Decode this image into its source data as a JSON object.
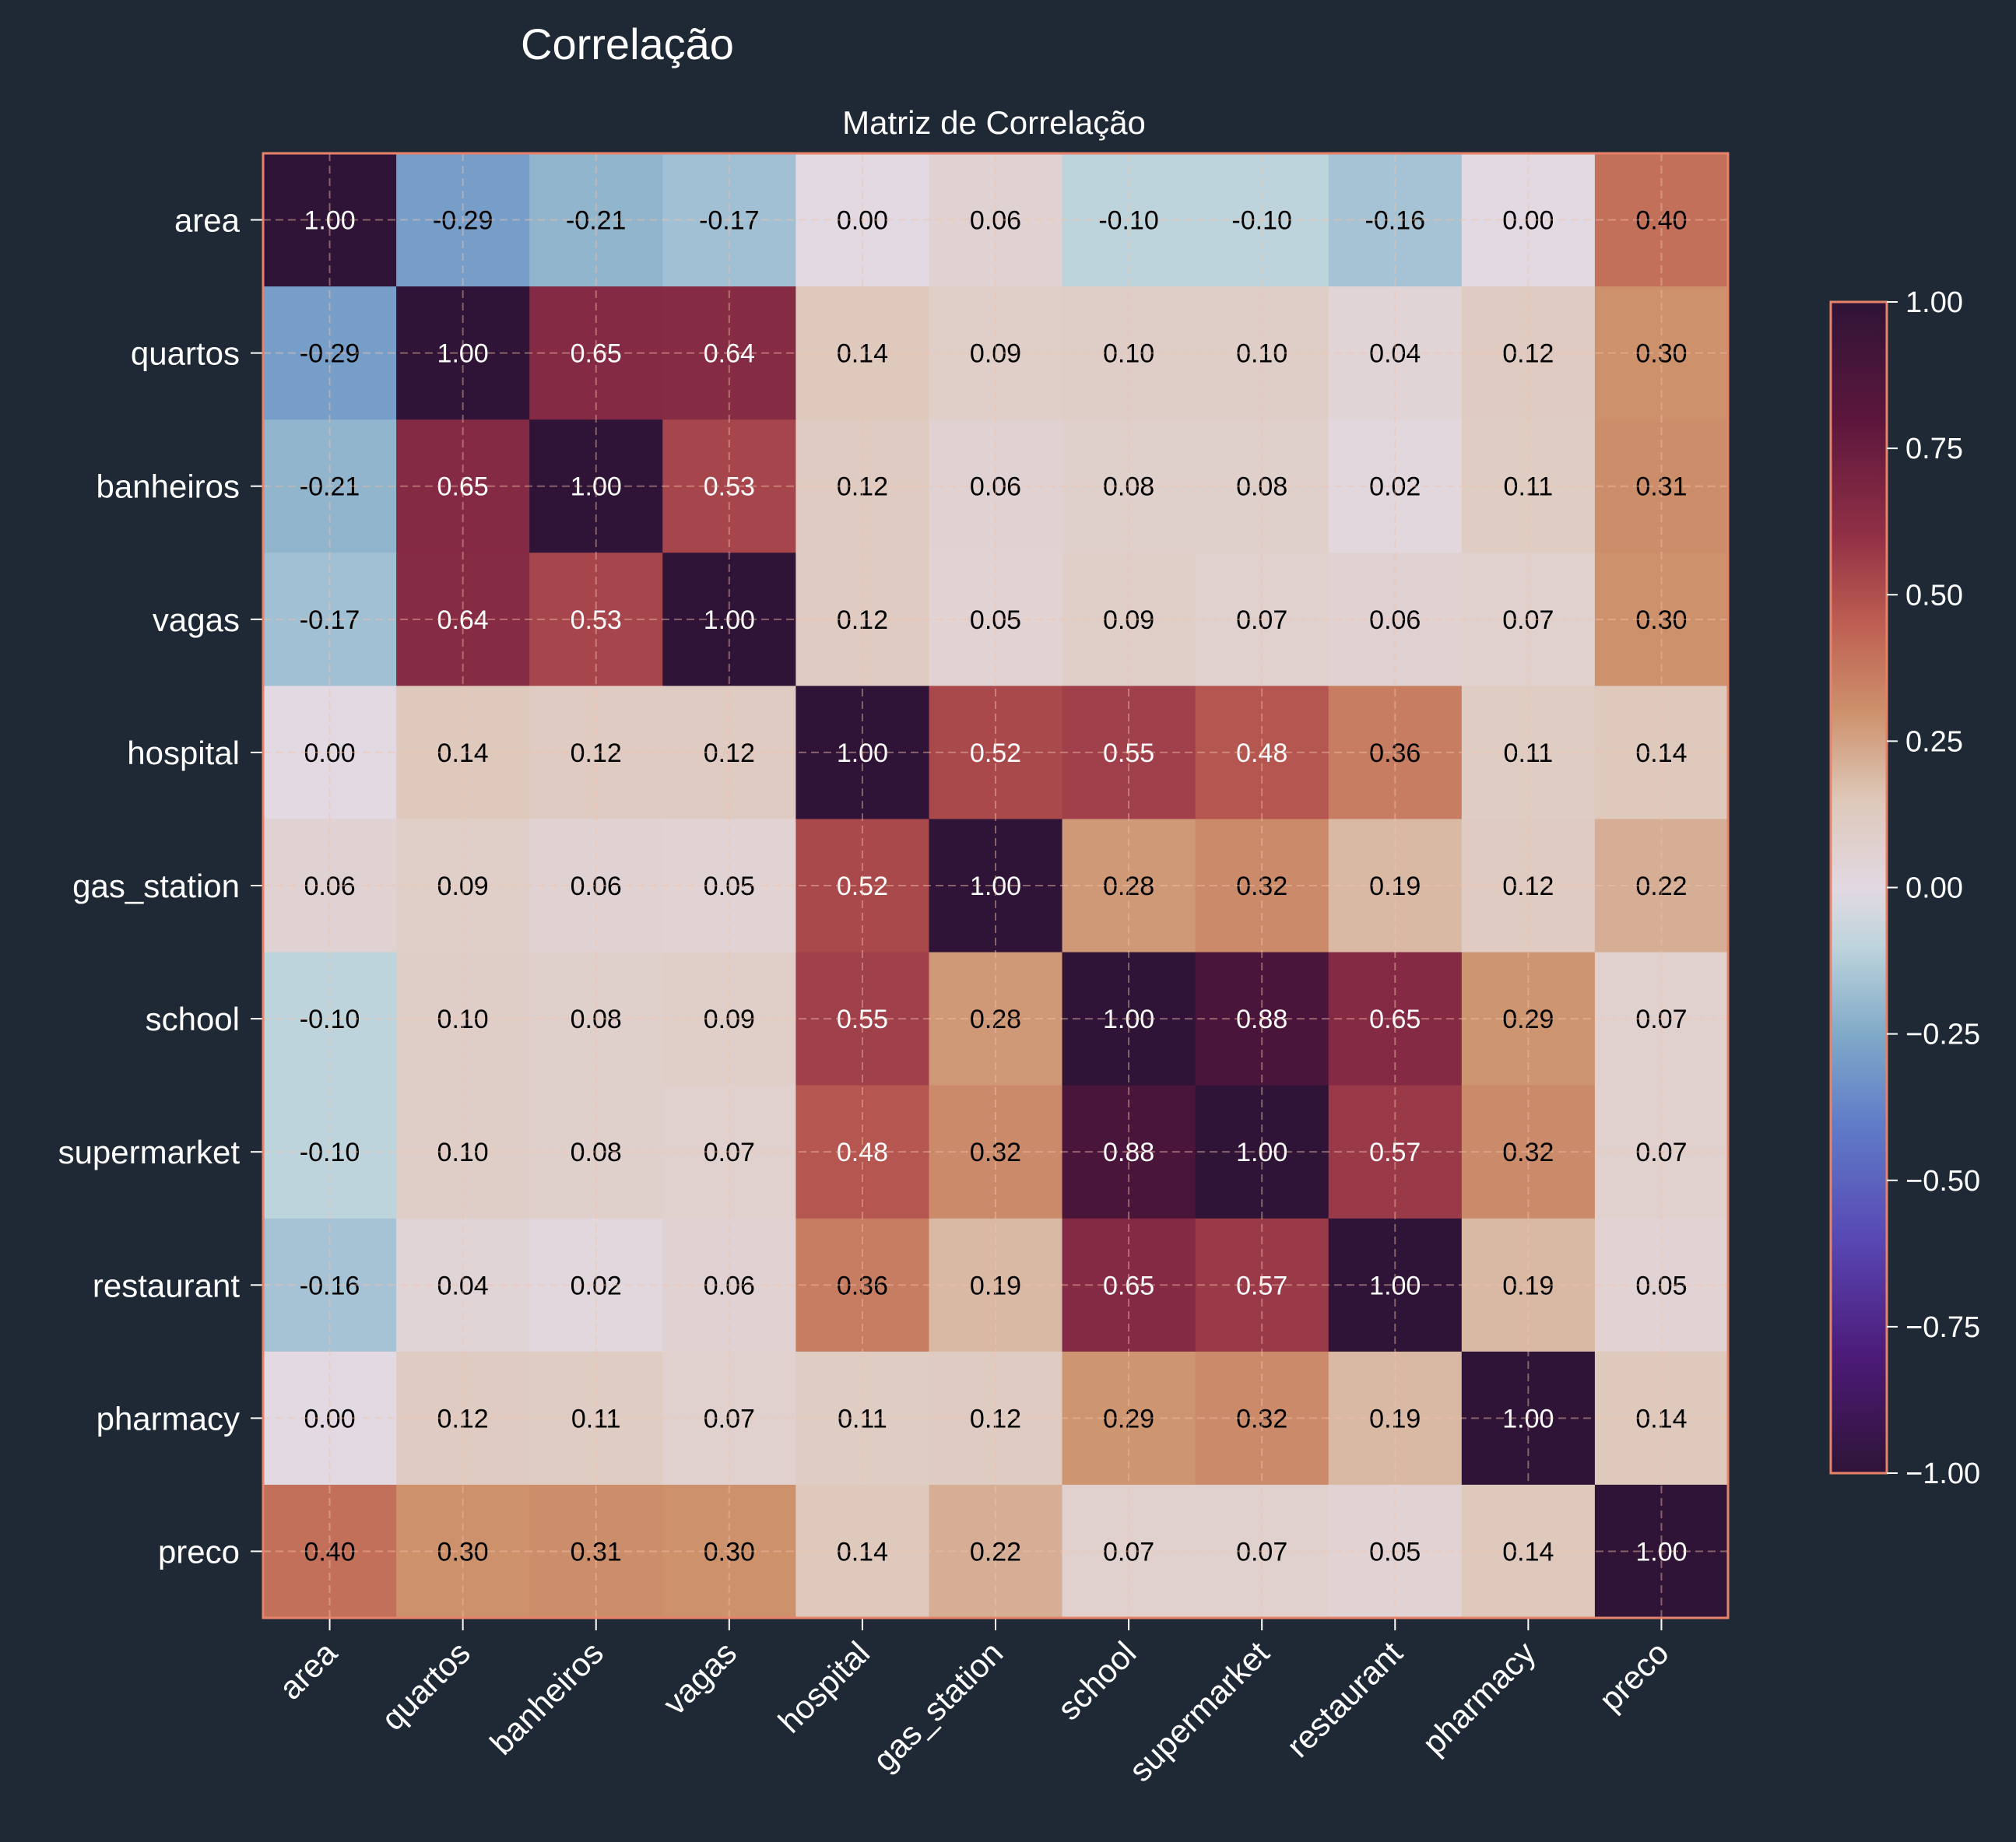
{
  "suptitle": "Correlação",
  "chart_data": {
    "type": "heatmap",
    "title": "Matriz de Correlação",
    "xlabel": "",
    "ylabel": "",
    "labels": [
      "area",
      "quartos",
      "banheiros",
      "vagas",
      "hospital",
      "gas_station",
      "school",
      "supermarket",
      "restaurant",
      "pharmacy",
      "preco"
    ],
    "values": [
      [
        1.0,
        -0.29,
        -0.21,
        -0.17,
        -0.0,
        0.06,
        -0.1,
        -0.1,
        -0.16,
        -0.0,
        0.4
      ],
      [
        -0.29,
        1.0,
        0.65,
        0.64,
        0.14,
        0.09,
        0.1,
        0.1,
        0.04,
        0.12,
        0.3
      ],
      [
        -0.21,
        0.65,
        1.0,
        0.53,
        0.12,
        0.06,
        0.08,
        0.08,
        0.02,
        0.11,
        0.31
      ],
      [
        -0.17,
        0.64,
        0.53,
        1.0,
        0.12,
        0.05,
        0.09,
        0.07,
        0.06,
        0.07,
        0.3
      ],
      [
        -0.0,
        0.14,
        0.12,
        0.12,
        1.0,
        0.52,
        0.55,
        0.48,
        0.36,
        0.11,
        0.14
      ],
      [
        0.06,
        0.09,
        0.06,
        0.05,
        0.52,
        1.0,
        0.28,
        0.32,
        0.19,
        0.12,
        0.22
      ],
      [
        -0.1,
        0.1,
        0.08,
        0.09,
        0.55,
        0.28,
        1.0,
        0.88,
        0.65,
        0.29,
        0.07
      ],
      [
        -0.1,
        0.1,
        0.08,
        0.07,
        0.48,
        0.32,
        0.88,
        1.0,
        0.57,
        0.32,
        0.07
      ],
      [
        -0.16,
        0.04,
        0.02,
        0.06,
        0.36,
        0.19,
        0.65,
        0.57,
        1.0,
        0.19,
        0.05
      ],
      [
        -0.0,
        0.12,
        0.11,
        0.07,
        0.11,
        0.12,
        0.29,
        0.32,
        0.19,
        1.0,
        0.14
      ],
      [
        0.4,
        0.3,
        0.31,
        0.3,
        0.14,
        0.22,
        0.07,
        0.07,
        0.05,
        0.14,
        1.0
      ]
    ],
    "value_format": "0.00",
    "vmin": -1,
    "vmax": 1,
    "colormap": "twilight_shifted",
    "colorbar": {
      "ticks": [
        1.0,
        0.75,
        0.5,
        0.25,
        0.0,
        -0.25,
        -0.5,
        -0.75,
        -1.0
      ],
      "tick_labels": [
        "1.00",
        "0.75",
        "0.50",
        "0.25",
        "0.00",
        "−0.25",
        "−0.50",
        "−0.75",
        "−1.00"
      ]
    },
    "grid": true,
    "colors": {
      "background": "#1e2935",
      "frame": "#e8826a",
      "grid": "#f5c2a8",
      "text": "#ffffff"
    }
  }
}
